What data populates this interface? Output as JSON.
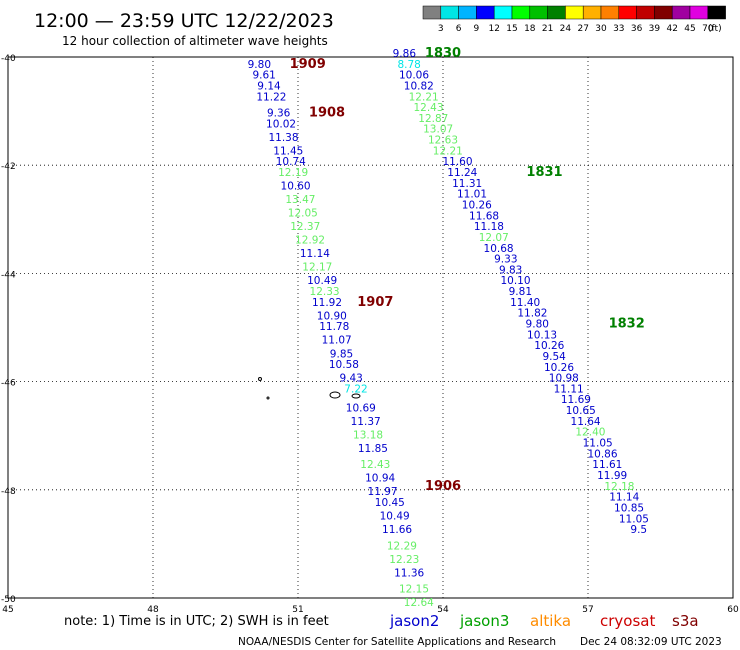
{
  "header": {
    "title": "12:00 — 23:59 UTC 12/22/2023",
    "subtitle": "12 hour collection of altimeter wave heights"
  },
  "colorbar": {
    "ticks": [
      "3",
      "6",
      "9",
      "12",
      "15",
      "18",
      "21",
      "24",
      "27",
      "30",
      "33",
      "36",
      "39",
      "42",
      "45",
      "70"
    ],
    "unit": "(ft)",
    "colors": [
      "#808080",
      "#00e5e5",
      "#00b4ff",
      "#0000ff",
      "#00ffff",
      "#00ff00",
      "#00c000",
      "#008000",
      "#ffff00",
      "#ffb000",
      "#ff8000",
      "#ff0000",
      "#c00000",
      "#800000",
      "#a000a0",
      "#e000e0",
      "#000000"
    ]
  },
  "footer": {
    "note": "note:  1) Time is in UTC; 2) SWH is in feet",
    "credit": "NOAA/NESDIS Center for Satellite Applications and Research",
    "timestamp": "Dec 24 08:32:09 UTC 2023",
    "legend": [
      {
        "name": "jason2",
        "color": "#0000cc"
      },
      {
        "name": "jason3",
        "color": "#00a000"
      },
      {
        "name": "altika",
        "color": "#ff8c00"
      },
      {
        "name": "cryosat",
        "color": "#cc0000"
      },
      {
        "name": "s3a",
        "color": "#800000"
      }
    ]
  },
  "chart_data": {
    "type": "scatter",
    "xlim": [
      45,
      60
    ],
    "ylim": [
      -50,
      -40
    ],
    "xticks": [
      "45",
      "48",
      "51",
      "54",
      "57",
      "60"
    ],
    "yticks": [
      "-40",
      "-42",
      "-44",
      "-46",
      "-48",
      "-50"
    ],
    "grid": true,
    "colors": {
      "low": "#00e5e5",
      "mid": "#0000cc",
      "high": "#66ee66"
    },
    "time_labels": [
      {
        "text": "1909",
        "x": 51.2,
        "y": -40.2,
        "color": "#800000"
      },
      {
        "text": "1908",
        "x": 51.6,
        "y": -41.1,
        "color": "#800000"
      },
      {
        "text": "1907",
        "x": 52.6,
        "y": -44.6,
        "color": "#800000"
      },
      {
        "text": "1906",
        "x": 54.0,
        "y": -48.0,
        "color": "#800000"
      },
      {
        "text": "1830",
        "x": 54.0,
        "y": -40.0,
        "color": "#008000"
      },
      {
        "text": "1831",
        "x": 56.1,
        "y": -42.2,
        "color": "#008000"
      },
      {
        "text": "1832",
        "x": 57.8,
        "y": -45.0,
        "color": "#008000"
      }
    ],
    "tracks": [
      {
        "points": [
          {
            "x": 50.2,
            "y": -40.2,
            "v": "9.80"
          },
          {
            "x": 50.3,
            "y": -40.4,
            "v": "9.61"
          },
          {
            "x": 50.4,
            "y": -40.6,
            "v": "9.14"
          },
          {
            "x": 50.45,
            "y": -40.8,
            "v": "11.22"
          },
          {
            "x": 50.6,
            "y": -41.1,
            "v": "9.36"
          },
          {
            "x": 50.65,
            "y": -41.3,
            "v": "10.02"
          },
          {
            "x": 50.7,
            "y": -41.55,
            "v": "11.38"
          },
          {
            "x": 50.8,
            "y": -41.8,
            "v": "11.45"
          },
          {
            "x": 50.85,
            "y": -42.0,
            "v": "10.74"
          },
          {
            "x": 50.9,
            "y": -42.2,
            "v": "12.19"
          },
          {
            "x": 50.95,
            "y": -42.45,
            "v": "10.60"
          },
          {
            "x": 51.05,
            "y": -42.7,
            "v": "13.47"
          },
          {
            "x": 51.1,
            "y": -42.95,
            "v": "12.05"
          },
          {
            "x": 51.15,
            "y": -43.2,
            "v": "12.37"
          },
          {
            "x": 51.25,
            "y": -43.45,
            "v": "12.92"
          },
          {
            "x": 51.35,
            "y": -43.7,
            "v": "11.14"
          },
          {
            "x": 51.4,
            "y": -43.95,
            "v": "12.17"
          },
          {
            "x": 51.5,
            "y": -44.2,
            "v": "10.49"
          },
          {
            "x": 51.55,
            "y": -44.4,
            "v": "12.33"
          },
          {
            "x": 51.6,
            "y": -44.6,
            "v": "11.92"
          },
          {
            "x": 51.7,
            "y": -44.85,
            "v": "10.90"
          },
          {
            "x": 51.75,
            "y": -45.05,
            "v": "11.78"
          },
          {
            "x": 51.8,
            "y": -45.3,
            "v": "11.07"
          },
          {
            "x": 51.9,
            "y": -45.55,
            "v": "9.85"
          },
          {
            "x": 51.95,
            "y": -45.75,
            "v": "10.58"
          },
          {
            "x": 52.1,
            "y": -46.0,
            "v": "9.43"
          },
          {
            "x": 52.2,
            "y": -46.2,
            "v": "7.22"
          },
          {
            "x": 52.3,
            "y": -46.55,
            "v": "10.69"
          },
          {
            "x": 52.4,
            "y": -46.8,
            "v": "11.37"
          },
          {
            "x": 52.45,
            "y": -47.05,
            "v": "13.18"
          },
          {
            "x": 52.55,
            "y": -47.3,
            "v": "11.85"
          },
          {
            "x": 52.6,
            "y": -47.6,
            "v": "12.43"
          },
          {
            "x": 52.7,
            "y": -47.85,
            "v": "10.94"
          },
          {
            "x": 52.75,
            "y": -48.1,
            "v": "11.97"
          },
          {
            "x": 52.9,
            "y": -48.3,
            "v": "10.45"
          },
          {
            "x": 53.0,
            "y": -48.55,
            "v": "10.49"
          },
          {
            "x": 53.05,
            "y": -48.8,
            "v": "11.66"
          },
          {
            "x": 53.15,
            "y": -49.1,
            "v": "12.29"
          },
          {
            "x": 53.2,
            "y": -49.35,
            "v": "12.23"
          },
          {
            "x": 53.3,
            "y": -49.6,
            "v": "11.36"
          },
          {
            "x": 53.4,
            "y": -49.9,
            "v": "12.15"
          },
          {
            "x": 53.5,
            "y": -50.15,
            "v": "12.64"
          }
        ]
      },
      {
        "points": [
          {
            "x": 53.2,
            "y": -40.0,
            "v": "9.86"
          },
          {
            "x": 53.3,
            "y": -40.2,
            "v": "8.78"
          },
          {
            "x": 53.4,
            "y": -40.4,
            "v": "10.06"
          },
          {
            "x": 53.5,
            "y": -40.6,
            "v": "10.82"
          },
          {
            "x": 53.6,
            "y": -40.8,
            "v": "12.21"
          },
          {
            "x": 53.7,
            "y": -41.0,
            "v": "12.43"
          },
          {
            "x": 53.8,
            "y": -41.2,
            "v": "12.87"
          },
          {
            "x": 53.9,
            "y": -41.4,
            "v": "13.07"
          },
          {
            "x": 54.0,
            "y": -41.6,
            "v": "12.63"
          },
          {
            "x": 54.1,
            "y": -41.8,
            "v": "12.21"
          },
          {
            "x": 54.3,
            "y": -42.0,
            "v": "11.60"
          },
          {
            "x": 54.4,
            "y": -42.2,
            "v": "11.24"
          },
          {
            "x": 54.5,
            "y": -42.4,
            "v": "11.31"
          },
          {
            "x": 54.6,
            "y": -42.6,
            "v": "11.01"
          },
          {
            "x": 54.7,
            "y": -42.8,
            "v": "10.26"
          },
          {
            "x": 54.85,
            "y": -43.0,
            "v": "11.68"
          },
          {
            "x": 54.95,
            "y": -43.2,
            "v": "11.18"
          },
          {
            "x": 55.05,
            "y": -43.4,
            "v": "12.07"
          },
          {
            "x": 55.15,
            "y": -43.6,
            "v": "10.68"
          },
          {
            "x": 55.3,
            "y": -43.8,
            "v": "9.33"
          },
          {
            "x": 55.4,
            "y": -44.0,
            "v": "9.83"
          },
          {
            "x": 55.5,
            "y": -44.2,
            "v": "10.10"
          },
          {
            "x": 55.6,
            "y": -44.4,
            "v": "9.81"
          },
          {
            "x": 55.7,
            "y": -44.6,
            "v": "11.40"
          },
          {
            "x": 55.85,
            "y": -44.8,
            "v": "11.82"
          },
          {
            "x": 55.95,
            "y": -45.0,
            "v": "9.80"
          },
          {
            "x": 56.05,
            "y": -45.2,
            "v": "10.13"
          },
          {
            "x": 56.2,
            "y": -45.4,
            "v": "10.26"
          },
          {
            "x": 56.3,
            "y": -45.6,
            "v": "9.54"
          },
          {
            "x": 56.4,
            "y": -45.8,
            "v": "10.26"
          },
          {
            "x": 56.5,
            "y": -46.0,
            "v": "10.98"
          },
          {
            "x": 56.6,
            "y": -46.2,
            "v": "11.11"
          },
          {
            "x": 56.75,
            "y": -46.4,
            "v": "11.69"
          },
          {
            "x": 56.85,
            "y": -46.6,
            "v": "10.65"
          },
          {
            "x": 56.95,
            "y": -46.8,
            "v": "11.64"
          },
          {
            "x": 57.05,
            "y": -47.0,
            "v": "12.40"
          },
          {
            "x": 57.2,
            "y": -47.2,
            "v": "11.05"
          },
          {
            "x": 57.3,
            "y": -47.4,
            "v": "10.86"
          },
          {
            "x": 57.4,
            "y": -47.6,
            "v": "11.61"
          },
          {
            "x": 57.5,
            "y": -47.8,
            "v": "11.99"
          },
          {
            "x": 57.65,
            "y": -48.0,
            "v": "12.18"
          },
          {
            "x": 57.75,
            "y": -48.2,
            "v": "11.14"
          },
          {
            "x": 57.85,
            "y": -48.4,
            "v": "10.85"
          },
          {
            "x": 57.95,
            "y": -48.6,
            "v": "11.05"
          },
          {
            "x": 58.05,
            "y": -48.8,
            "v": "9.5"
          }
        ]
      }
    ]
  }
}
